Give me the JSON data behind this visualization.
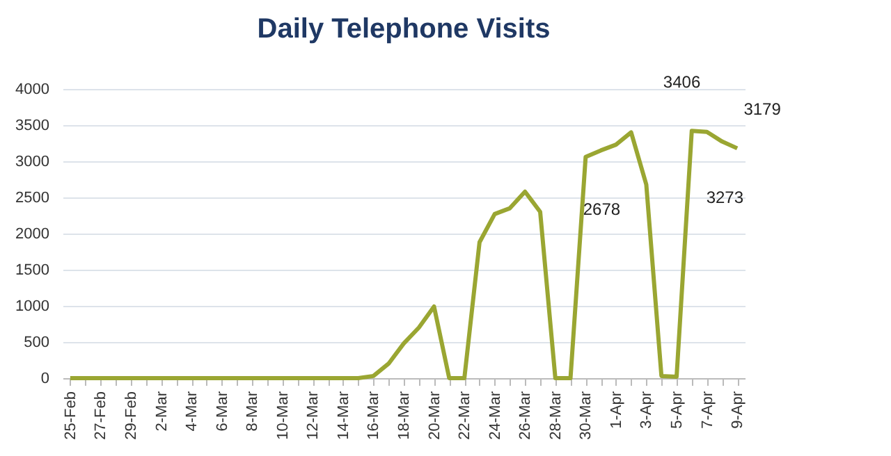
{
  "chart_data": {
    "type": "line",
    "title": "Daily Telephone Visits",
    "categories": [
      "25-Feb",
      null,
      "27-Feb",
      null,
      "29-Feb",
      null,
      "2-Mar",
      null,
      "4-Mar",
      null,
      "6-Mar",
      null,
      "8-Mar",
      null,
      "10-Mar",
      null,
      "12-Mar",
      null,
      "14-Mar",
      null,
      "16-Mar",
      null,
      "18-Mar",
      null,
      "20-Mar",
      null,
      "22-Mar",
      null,
      "24-Mar",
      null,
      "26-Mar",
      null,
      "28-Mar",
      null,
      "30-Mar",
      null,
      "1-Apr",
      null,
      "3-Apr",
      null,
      "5-Apr",
      null,
      "7-Apr",
      null,
      "9-Apr"
    ],
    "series": [
      {
        "color": "#9aa632",
        "values": [
          0,
          0,
          0,
          0,
          0,
          0,
          0,
          0,
          0,
          0,
          0,
          0,
          0,
          0,
          0,
          0,
          0,
          0,
          0,
          0,
          30,
          200,
          480,
          700,
          990,
          0,
          0,
          1880,
          2270,
          2350,
          2580,
          2300,
          0,
          0,
          3060,
          3150,
          3230,
          3400,
          2678,
          30,
          20,
          3420,
          3406,
          3273,
          3179
        ]
      }
    ],
    "ylim": [
      0,
      4000
    ],
    "yticks": [
      0,
      500,
      1000,
      1500,
      2000,
      2500,
      3000,
      3500,
      4000
    ],
    "grid": "y",
    "annotations": [
      {
        "text": "3406",
        "x": "7-Apr",
        "y": 3406
      },
      {
        "text": "3179",
        "x": "9-Apr",
        "y": 3179
      },
      {
        "text": "3273",
        "y": 3273
      },
      {
        "text": "2678",
        "x": "3-Apr",
        "y": 2678
      }
    ]
  }
}
